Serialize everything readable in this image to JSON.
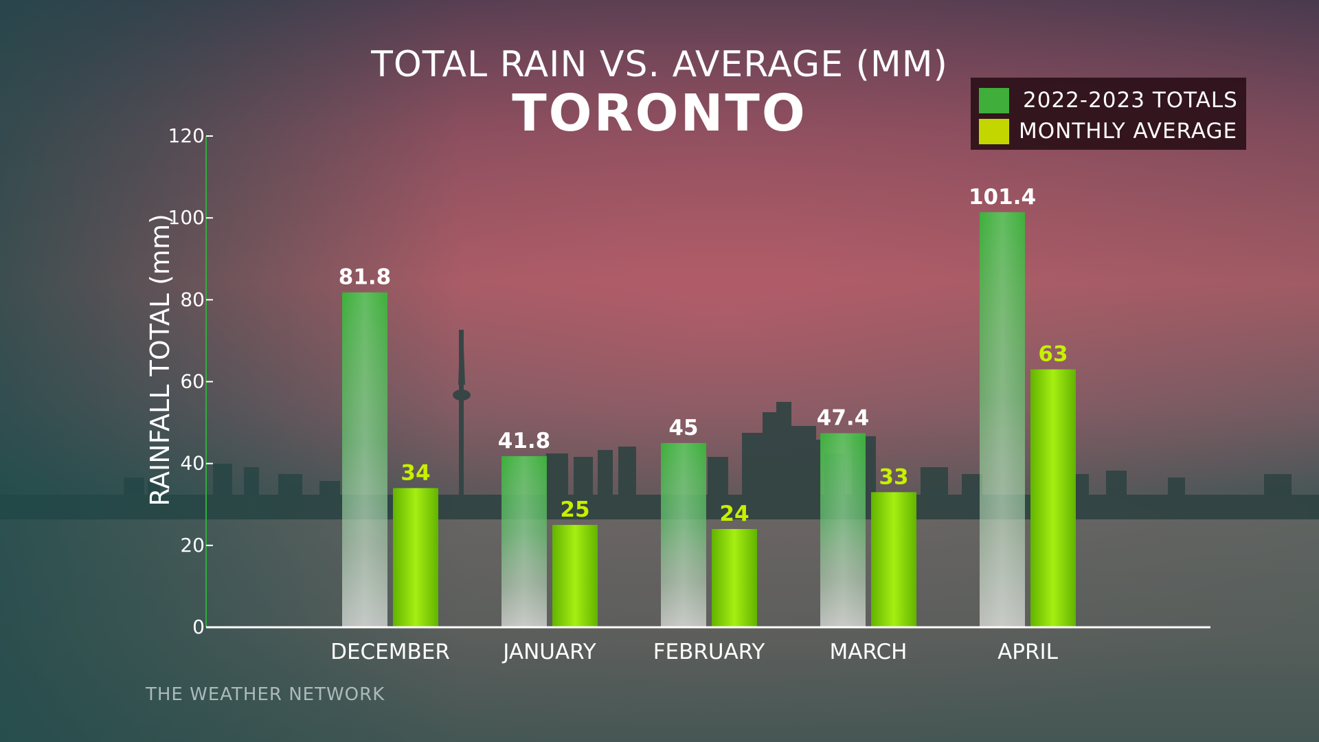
{
  "header": {
    "title": "TOTAL RAIN VS. AVERAGE (MM)",
    "subtitle": "TORONTO"
  },
  "legend": {
    "items": [
      {
        "label": "2022-2023 TOTALS",
        "color": "#3fae3a"
      },
      {
        "label": "MONTHLY AVERAGE",
        "color": "#c3d600"
      }
    ]
  },
  "footer": {
    "watermark": "THE WEATHER NETWORK"
  },
  "colors": {
    "totals_bar": "#34b43a",
    "average_bar": "#8fe000",
    "totals_value_text": "#ffffff",
    "average_value_text": "#c8f000",
    "axis": "#ffffff",
    "y_axis_accent": "#2fae3a"
  },
  "chart_data": {
    "type": "bar",
    "title": "TOTAL RAIN VS. AVERAGE (MM)",
    "subtitle": "TORONTO",
    "xlabel": "",
    "ylabel": "RAINFALL TOTAL (mm)",
    "ylim": [
      0,
      120
    ],
    "yticks": [
      0,
      20,
      40,
      60,
      80,
      100,
      120
    ],
    "grid": false,
    "legend_position": "top-right",
    "categories": [
      "DECEMBER",
      "JANUARY",
      "FEBRUARY",
      "MARCH",
      "APRIL"
    ],
    "series": [
      {
        "name": "2022-2023 TOTALS",
        "values": [
          81.8,
          41.8,
          45,
          47.4,
          101.4
        ]
      },
      {
        "name": "MONTHLY AVERAGE",
        "values": [
          34,
          25,
          24,
          33,
          63
        ]
      }
    ]
  }
}
